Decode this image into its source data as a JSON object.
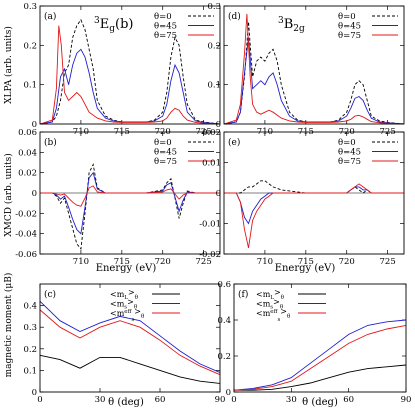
{
  "figure": {
    "panels": [
      {
        "id": "a",
        "label": "(a)",
        "state_main": "3",
        "state_sub": "E",
        "state_tail": "g",
        "state_suffix": "(b)"
      },
      {
        "id": "d",
        "label": "(d)",
        "state_main": "3",
        "state_sub": "B",
        "state_tail": "2g",
        "state_suffix": ""
      },
      {
        "id": "b",
        "label": "(b)"
      },
      {
        "id": "e",
        "label": "(e)"
      },
      {
        "id": "c",
        "label": "(c)"
      },
      {
        "id": "f",
        "label": "(f)"
      }
    ],
    "xas_ylabel": "XLPA (arb. units)",
    "xmcd_ylabel": "XMCD (arb. units)",
    "energy_xlabel": "Energy (eV)",
    "moment_ylabel": "magnetic moment (μB)",
    "theta_xlabel": "θ (deg)",
    "legend_theta": [
      "θ=0",
      "θ=45",
      "θ=75"
    ],
    "legend_moment": [
      "<mL>θ",
      "<ms>θ",
      "<meffs>θ"
    ]
  },
  "colors": {
    "theta0": "#000000",
    "theta45": "#2020d0",
    "theta75": "#e01818",
    "mL": "#000000",
    "ms": "#2020d0",
    "meff": "#e01818"
  },
  "chart_data": [
    {
      "panel": "a",
      "type": "line",
      "ylabel": "XLPA (arb. units)",
      "xlim": [
        705,
        727
      ],
      "ylim": [
        0,
        0.3
      ],
      "xticks": [
        710,
        715,
        720,
        725
      ],
      "yticks": [
        0,
        0.1,
        0.2,
        0.3
      ],
      "series": [
        {
          "name": "θ=0",
          "x": [
            705,
            706.5,
            707,
            707.5,
            708,
            708.5,
            709,
            709.5,
            710,
            710.5,
            711,
            711.5,
            712,
            713,
            714,
            715,
            716,
            717,
            718,
            719,
            720,
            720.5,
            721,
            721.5,
            722,
            722.5,
            723,
            724,
            725,
            727
          ],
          "y": [
            0,
            0.005,
            0.02,
            0.06,
            0.13,
            0.15,
            0.22,
            0.25,
            0.265,
            0.24,
            0.19,
            0.14,
            0.06,
            0.02,
            0.01,
            0.005,
            0.005,
            0.005,
            0.005,
            0.01,
            0.03,
            0.08,
            0.17,
            0.22,
            0.2,
            0.12,
            0.05,
            0.01,
            0.005,
            0
          ]
        },
        {
          "name": "θ=45",
          "x": [
            705,
            706.5,
            707,
            707.5,
            708,
            708.5,
            709,
            709.5,
            710,
            710.5,
            711,
            711.5,
            712,
            713,
            714,
            715,
            716,
            717,
            718,
            719,
            720,
            720.5,
            721,
            721.5,
            722,
            722.5,
            723,
            724,
            725,
            727
          ],
          "y": [
            0,
            0.005,
            0.04,
            0.12,
            0.14,
            0.1,
            0.15,
            0.18,
            0.19,
            0.17,
            0.13,
            0.08,
            0.04,
            0.015,
            0.008,
            0.005,
            0.005,
            0.005,
            0.005,
            0.008,
            0.02,
            0.05,
            0.11,
            0.15,
            0.13,
            0.08,
            0.03,
            0.008,
            0.004,
            0
          ]
        },
        {
          "name": "θ=75",
          "x": [
            705,
            706.5,
            707,
            707.3,
            707.6,
            708,
            708.5,
            709,
            709.5,
            710,
            710.5,
            711,
            712,
            713,
            714,
            715,
            716,
            717,
            718,
            719,
            720,
            720.5,
            721,
            721.5,
            722,
            722.5,
            723,
            724,
            725,
            727
          ],
          "y": [
            0,
            0.01,
            0.09,
            0.25,
            0.2,
            0.08,
            0.06,
            0.07,
            0.08,
            0.07,
            0.05,
            0.03,
            0.015,
            0.008,
            0.005,
            0.004,
            0.004,
            0.004,
            0.004,
            0.005,
            0.008,
            0.015,
            0.03,
            0.04,
            0.035,
            0.02,
            0.01,
            0.004,
            0.002,
            0
          ]
        }
      ]
    },
    {
      "panel": "d",
      "type": "line",
      "ylabel": "",
      "xlim": [
        705,
        727
      ],
      "ylim": [
        0,
        0.3
      ],
      "xticks": [
        710,
        715,
        720,
        725
      ],
      "yticks": [
        0,
        0.1,
        0.2,
        0.3
      ],
      "series": [
        {
          "name": "θ=0",
          "x": [
            705,
            706.5,
            707,
            707.5,
            708,
            708.5,
            709,
            709.5,
            710,
            710.5,
            711,
            711.5,
            712,
            713,
            714,
            715,
            716,
            717,
            718,
            719,
            720,
            720.5,
            721,
            721.5,
            722,
            722.5,
            723,
            724,
            725,
            727
          ],
          "y": [
            0,
            0.005,
            0.03,
            0.12,
            0.26,
            0.12,
            0.16,
            0.17,
            0.16,
            0.18,
            0.19,
            0.16,
            0.1,
            0.03,
            0.01,
            0.005,
            0.005,
            0.005,
            0.005,
            0.01,
            0.03,
            0.06,
            0.1,
            0.11,
            0.1,
            0.06,
            0.02,
            0.008,
            0.004,
            0
          ]
        },
        {
          "name": "θ=45",
          "x": [
            705,
            706.5,
            707,
            707.5,
            708,
            708.5,
            709,
            709.5,
            710,
            710.5,
            711,
            711.5,
            712,
            713,
            714,
            715,
            716,
            717,
            718,
            719,
            720,
            720.5,
            721,
            721.5,
            722,
            722.5,
            723,
            724,
            725,
            727
          ],
          "y": [
            0,
            0.005,
            0.03,
            0.13,
            0.22,
            0.09,
            0.1,
            0.11,
            0.1,
            0.12,
            0.13,
            0.1,
            0.06,
            0.02,
            0.008,
            0.005,
            0.005,
            0.005,
            0.005,
            0.008,
            0.02,
            0.04,
            0.065,
            0.07,
            0.06,
            0.035,
            0.015,
            0.005,
            0.003,
            0
          ]
        },
        {
          "name": "θ=75",
          "x": [
            705,
            706.5,
            707,
            707.5,
            707.8,
            708.2,
            708.5,
            709,
            709.5,
            710,
            710.5,
            711,
            712,
            713,
            714,
            715,
            716,
            717,
            718,
            719,
            720,
            720.5,
            721,
            721.5,
            722,
            722.5,
            723,
            724,
            725,
            727
          ],
          "y": [
            0,
            0.01,
            0.05,
            0.18,
            0.28,
            0.12,
            0.05,
            0.03,
            0.025,
            0.03,
            0.035,
            0.03,
            0.015,
            0.008,
            0.005,
            0.004,
            0.004,
            0.004,
            0.004,
            0.005,
            0.008,
            0.012,
            0.02,
            0.022,
            0.018,
            0.012,
            0.006,
            0.003,
            0.002,
            0
          ]
        }
      ]
    },
    {
      "panel": "b",
      "type": "line",
      "ylabel": "XMCD (arb. units)",
      "xlabel": "Energy (eV)",
      "xlim": [
        705,
        727
      ],
      "ylim": [
        -0.06,
        0.06
      ],
      "xticks": [
        710,
        715,
        720,
        725
      ],
      "yticks": [
        -0.06,
        -0.04,
        -0.02,
        0,
        0.02,
        0.04,
        0.06
      ],
      "series": [
        {
          "name": "θ=0",
          "x": [
            705,
            706.5,
            707,
            707.5,
            708,
            708.5,
            709,
            709.5,
            710,
            710.5,
            711,
            711.5,
            712,
            713,
            715,
            718,
            720,
            720.5,
            721,
            721.5,
            722,
            722.5,
            723,
            724,
            727
          ],
          "y": [
            0,
            0,
            -0.003,
            -0.01,
            -0.005,
            -0.02,
            -0.035,
            -0.05,
            -0.055,
            -0.02,
            0.02,
            0.028,
            0.005,
            0,
            0,
            0,
            0.003,
            0.01,
            0.014,
            -0.005,
            -0.025,
            -0.01,
            0.002,
            0,
            0
          ]
        },
        {
          "name": "θ=45",
          "x": [
            705,
            706.5,
            707,
            707.5,
            708,
            708.5,
            709,
            709.5,
            710,
            710.5,
            711,
            711.5,
            712,
            713,
            715,
            718,
            720,
            720.5,
            721,
            721.5,
            722,
            722.5,
            723,
            724,
            727
          ],
          "y": [
            0,
            0,
            -0.002,
            -0.006,
            -0.003,
            -0.014,
            -0.026,
            -0.036,
            -0.04,
            -0.014,
            0.015,
            0.02,
            0.004,
            0,
            0,
            0,
            0.002,
            0.008,
            0.01,
            -0.004,
            -0.018,
            -0.007,
            0.001,
            0,
            0
          ]
        },
        {
          "name": "θ=75",
          "x": [
            705,
            706.5,
            707,
            707.5,
            708,
            708.5,
            709,
            709.5,
            710,
            710.5,
            711,
            711.5,
            712,
            713,
            715,
            718,
            720,
            720.5,
            721,
            721.5,
            722,
            722.5,
            723,
            724,
            727
          ],
          "y": [
            0,
            0,
            -0.001,
            -0.002,
            -0.001,
            -0.005,
            -0.009,
            -0.012,
            -0.013,
            -0.005,
            0.005,
            0.007,
            0.001,
            0,
            0,
            0,
            0.001,
            0.003,
            0.004,
            -0.001,
            -0.006,
            -0.002,
            0,
            0,
            0
          ]
        }
      ]
    },
    {
      "panel": "e",
      "type": "line",
      "ylabel": "",
      "xlabel": "Energy (eV)",
      "xlim": [
        705,
        727
      ],
      "ylim": [
        -0.02,
        0.02
      ],
      "xticks": [
        710,
        715,
        720,
        725
      ],
      "yticks": [
        -0.02,
        -0.01,
        0,
        0.01,
        0.02
      ],
      "series": [
        {
          "name": "θ=0",
          "x": [
            705,
            706.5,
            707,
            707.5,
            708,
            708.5,
            709,
            709.5,
            710,
            710.5,
            711,
            712,
            715,
            718,
            720,
            720.5,
            721,
            721.5,
            722,
            722.5,
            723,
            724,
            727
          ],
          "y": [
            0,
            0,
            0,
            0.001,
            0.002,
            0.002,
            0.003,
            0.004,
            0.004,
            0.003,
            0.002,
            0.001,
            0,
            0,
            0,
            0.001,
            0.002,
            0.001,
            0,
            0.001,
            0,
            0,
            0
          ]
        },
        {
          "name": "θ=45",
          "x": [
            705,
            706.5,
            707,
            707.5,
            708,
            708.5,
            709,
            709.5,
            710,
            710.5,
            711,
            712,
            715,
            718,
            720,
            720.5,
            721,
            721.5,
            722,
            722.5,
            723,
            724,
            727
          ],
          "y": [
            0,
            0,
            -0.003,
            -0.008,
            -0.01,
            -0.006,
            -0.004,
            -0.002,
            -0.001,
            0,
            0,
            0,
            0,
            0,
            0,
            0.001,
            0.002,
            0.002,
            0.001,
            0.001,
            0,
            0,
            0
          ]
        },
        {
          "name": "θ=75",
          "x": [
            705,
            706.5,
            707,
            707.5,
            708,
            708.5,
            709,
            709.5,
            710,
            710.5,
            711,
            712,
            715,
            718,
            720,
            720.5,
            721,
            721.5,
            722,
            722.5,
            723,
            724,
            727
          ],
          "y": [
            0,
            0,
            -0.003,
            -0.012,
            -0.018,
            -0.009,
            -0.006,
            -0.004,
            -0.002,
            -0.001,
            0,
            0,
            0,
            0,
            0,
            0.001,
            0.002,
            0.003,
            0.002,
            0.001,
            0,
            0,
            0
          ]
        }
      ]
    },
    {
      "panel": "c",
      "type": "line",
      "ylabel": "magnetic moment (μB)",
      "xlabel": "θ (deg)",
      "xlim": [
        0,
        90
      ],
      "ylim": [
        0,
        0.5
      ],
      "xticks": [
        0,
        30,
        60,
        90
      ],
      "yticks": [
        0,
        0.1,
        0.2,
        0.3,
        0.4
      ],
      "series": [
        {
          "name": "<mL>θ",
          "x": [
            0,
            10,
            20,
            30,
            40,
            50,
            60,
            70,
            80,
            90
          ],
          "y": [
            0.17,
            0.15,
            0.11,
            0.16,
            0.16,
            0.13,
            0.1,
            0.07,
            0.05,
            0.04
          ]
        },
        {
          "name": "<ms>θ",
          "x": [
            0,
            10,
            20,
            30,
            40,
            50,
            60,
            70,
            80,
            90
          ],
          "y": [
            0.42,
            0.33,
            0.28,
            0.32,
            0.35,
            0.33,
            0.26,
            0.19,
            0.13,
            0.09
          ]
        },
        {
          "name": "<meffs>θ",
          "x": [
            0,
            10,
            20,
            30,
            40,
            50,
            60,
            70,
            80,
            90
          ],
          "y": [
            0.38,
            0.3,
            0.25,
            0.3,
            0.33,
            0.3,
            0.24,
            0.17,
            0.12,
            0.08
          ]
        }
      ]
    },
    {
      "panel": "f",
      "type": "line",
      "ylabel": "",
      "xlabel": "θ (deg)",
      "xlim": [
        0,
        90
      ],
      "ylim": [
        0,
        0.6
      ],
      "xticks": [
        0,
        30,
        60,
        90
      ],
      "yticks": [
        0,
        0.2,
        0.4,
        0.6
      ],
      "series": [
        {
          "name": "<mL>θ",
          "x": [
            0,
            10,
            20,
            30,
            40,
            50,
            60,
            70,
            80,
            90
          ],
          "y": [
            0.01,
            0.01,
            0.015,
            0.03,
            0.05,
            0.08,
            0.11,
            0.13,
            0.14,
            0.15
          ]
        },
        {
          "name": "<ms>θ",
          "x": [
            0,
            10,
            20,
            30,
            40,
            50,
            60,
            70,
            80,
            90
          ],
          "y": [
            0.01,
            0.02,
            0.04,
            0.08,
            0.16,
            0.24,
            0.32,
            0.37,
            0.39,
            0.4
          ]
        },
        {
          "name": "<meffs>θ",
          "x": [
            0,
            10,
            20,
            30,
            40,
            50,
            60,
            70,
            80,
            90
          ],
          "y": [
            0.01,
            0.015,
            0.03,
            0.06,
            0.13,
            0.2,
            0.27,
            0.32,
            0.35,
            0.37
          ]
        }
      ]
    }
  ]
}
